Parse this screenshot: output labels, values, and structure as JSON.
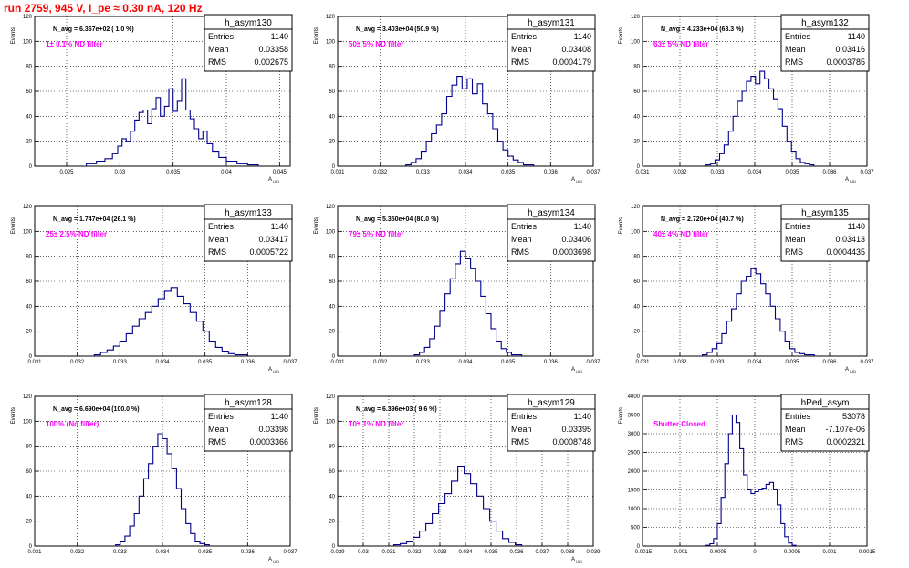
{
  "header": {
    "run_title": "run 2759,   945 V, I_pe ≈ 0.30 nA, 120 Hz"
  },
  "colors": {
    "hist_line": "#00008b",
    "note_text": "#ff00ff",
    "title_text": "#ff0000",
    "grid": "#000000"
  },
  "stat_labels": {
    "entries": "Entries",
    "mean": "Mean",
    "rms": "RMS"
  },
  "chart_data": [
    {
      "type": "histogram",
      "name": "h_asym130",
      "navg": "N_avg = 6.367e+02 ( 1.0 %)",
      "note": "1± 0.1% ND filter",
      "entries": "1140",
      "mean": "0.03358",
      "rms": "0.002675",
      "ylabel": "Events",
      "xlabel": "A_uid",
      "xlim": [
        0.022,
        0.046
      ],
      "ylim": [
        0,
        120
      ],
      "xticks": [
        0.025,
        0.03,
        0.035,
        0.04,
        0.045
      ],
      "xtick_labels": [
        "0.025",
        "0.03",
        "0.035",
        "0.04",
        "0.045"
      ],
      "yticks": [
        0,
        20,
        40,
        60,
        80,
        100,
        120
      ],
      "ytick_labels": [
        "0",
        "20",
        "40",
        "60",
        "80",
        "100",
        "120"
      ],
      "grid": true,
      "bin_edges": [
        0.02685,
        0.0278,
        0.0286,
        0.0293,
        0.0298,
        0.0302,
        0.0306,
        0.031,
        0.0314,
        0.0318,
        0.0322,
        0.0326,
        0.033,
        0.0334,
        0.0338,
        0.0342,
        0.0346,
        0.035,
        0.0354,
        0.0358,
        0.0362,
        0.0366,
        0.037,
        0.0374,
        0.0378,
        0.0382,
        0.0387,
        0.0393,
        0.04,
        0.041,
        0.042,
        0.043
      ],
      "counts": [
        2,
        4,
        6,
        10,
        16,
        22,
        20,
        28,
        37,
        43,
        45,
        34,
        46,
        55,
        40,
        48,
        62,
        44,
        52,
        70,
        45,
        38,
        30,
        22,
        28,
        18,
        12,
        7,
        4,
        2,
        1
      ]
    },
    {
      "type": "histogram",
      "name": "h_asym131",
      "navg": "N_avg = 3.403e+04 (50.9 %)",
      "note": "50± 5% ND filter",
      "entries": "1140",
      "mean": "0.03408",
      "rms": "0.0004179",
      "ylabel": "Events",
      "xlabel": "A_uid",
      "xlim": [
        0.031,
        0.037
      ],
      "ylim": [
        0,
        120
      ],
      "xticks": [
        0.031,
        0.032,
        0.033,
        0.034,
        0.035,
        0.036,
        0.037
      ],
      "xtick_labels": [
        "0.031",
        "0.032",
        "0.033",
        "0.034",
        "0.035",
        "0.036",
        "0.037"
      ],
      "yticks": [
        0,
        20,
        40,
        60,
        80,
        100,
        120
      ],
      "ytick_labels": [
        "0",
        "20",
        "40",
        "60",
        "80",
        "100",
        "120"
      ],
      "grid": true,
      "bin_edges": [
        0.0326,
        0.03272,
        0.03284,
        0.03296,
        0.03308,
        0.0332,
        0.03332,
        0.03344,
        0.03356,
        0.03368,
        0.0338,
        0.03392,
        0.03404,
        0.03416,
        0.03428,
        0.0344,
        0.03452,
        0.03464,
        0.03476,
        0.03488,
        0.035,
        0.03512,
        0.03524,
        0.03536,
        0.03548,
        0.0356
      ],
      "counts": [
        1,
        3,
        6,
        12,
        20,
        26,
        33,
        42,
        56,
        65,
        72,
        62,
        70,
        58,
        66,
        50,
        42,
        30,
        20,
        13,
        8,
        5,
        3,
        1,
        1
      ]
    },
    {
      "type": "histogram",
      "name": "h_asym132",
      "navg": "N_avg = 4.233e+04 (63.3 %)",
      "note": "63± 5% ND filter",
      "entries": "1140",
      "mean": "0.03416",
      "rms": "0.0003785",
      "ylabel": "Events",
      "xlabel": "A_uid",
      "xlim": [
        0.031,
        0.037
      ],
      "ylim": [
        0,
        120
      ],
      "xticks": [
        0.031,
        0.032,
        0.033,
        0.034,
        0.035,
        0.036,
        0.037
      ],
      "xtick_labels": [
        "0.031",
        "0.032",
        "0.033",
        "0.034",
        "0.035",
        "0.036",
        "0.037"
      ],
      "yticks": [
        0,
        20,
        40,
        60,
        80,
        100,
        120
      ],
      "ytick_labels": [
        "0",
        "20",
        "40",
        "60",
        "80",
        "100",
        "120"
      ],
      "grid": true,
      "bin_edges": [
        0.0327,
        0.03282,
        0.03294,
        0.03306,
        0.03318,
        0.0333,
        0.03342,
        0.03354,
        0.03366,
        0.03378,
        0.0339,
        0.03402,
        0.03414,
        0.03426,
        0.03438,
        0.0345,
        0.03462,
        0.03474,
        0.03486,
        0.03498,
        0.0351,
        0.03522,
        0.03534,
        0.03546,
        0.03558
      ],
      "counts": [
        1,
        2,
        5,
        10,
        17,
        28,
        40,
        52,
        60,
        68,
        72,
        66,
        76,
        70,
        62,
        54,
        46,
        32,
        20,
        12,
        6,
        3,
        2,
        1
      ]
    },
    {
      "type": "histogram",
      "name": "h_asym133",
      "navg": "N_avg = 1.747e+04 (26.1 %)",
      "note": "25± 2.5% ND filter",
      "entries": "1140",
      "mean": "0.03417",
      "rms": "0.0005722",
      "ylabel": "Events",
      "xlabel": "A_uid",
      "xlim": [
        0.031,
        0.037
      ],
      "ylim": [
        0,
        120
      ],
      "xticks": [
        0.031,
        0.032,
        0.033,
        0.034,
        0.035,
        0.036,
        0.037
      ],
      "xtick_labels": [
        "0.031",
        "0.032",
        "0.033",
        "0.034",
        "0.035",
        "0.036",
        "0.037"
      ],
      "yticks": [
        0,
        20,
        40,
        60,
        80,
        100,
        120
      ],
      "ytick_labels": [
        "0",
        "20",
        "40",
        "60",
        "80",
        "100",
        "120"
      ],
      "grid": true,
      "bin_edges": [
        0.0324,
        0.03255,
        0.0327,
        0.03285,
        0.033,
        0.03315,
        0.0333,
        0.03345,
        0.0336,
        0.03375,
        0.0339,
        0.03405,
        0.0342,
        0.03435,
        0.0345,
        0.03465,
        0.0348,
        0.03495,
        0.0351,
        0.03525,
        0.0354,
        0.03555,
        0.0357,
        0.03585,
        0.036
      ],
      "counts": [
        1,
        3,
        5,
        8,
        12,
        18,
        24,
        30,
        35,
        40,
        46,
        52,
        55,
        48,
        42,
        35,
        28,
        20,
        12,
        7,
        4,
        2,
        1,
        1
      ]
    },
    {
      "type": "histogram",
      "name": "h_asym134",
      "navg": "N_avg = 5.350e+04 (80.0 %)",
      "note": "79± 5% ND filter",
      "entries": "1140",
      "mean": "0.03406",
      "rms": "0.0003698",
      "ylabel": "Events",
      "xlabel": "A_uid",
      "xlim": [
        0.031,
        0.037
      ],
      "ylim": [
        0,
        120
      ],
      "xticks": [
        0.031,
        0.032,
        0.033,
        0.034,
        0.035,
        0.036,
        0.037
      ],
      "xtick_labels": [
        "0.031",
        "0.032",
        "0.033",
        "0.034",
        "0.035",
        "0.036",
        "0.037"
      ],
      "yticks": [
        0,
        20,
        40,
        60,
        80,
        100,
        120
      ],
      "ytick_labels": [
        "0",
        "20",
        "40",
        "60",
        "80",
        "100",
        "120"
      ],
      "grid": true,
      "bin_edges": [
        0.0328,
        0.03292,
        0.03304,
        0.03316,
        0.03328,
        0.0334,
        0.03352,
        0.03364,
        0.03376,
        0.03388,
        0.034,
        0.03412,
        0.03424,
        0.03436,
        0.03448,
        0.0346,
        0.03472,
        0.03484,
        0.03496,
        0.03508,
        0.0352,
        0.03532
      ],
      "counts": [
        1,
        3,
        7,
        14,
        24,
        36,
        50,
        62,
        74,
        84,
        78,
        70,
        60,
        48,
        34,
        22,
        12,
        6,
        3,
        1,
        1
      ]
    },
    {
      "type": "histogram",
      "name": "h_asym135",
      "navg": "N_avg = 2.720e+04 (40.7 %)",
      "note": "40± 4% ND filter",
      "entries": "1140",
      "mean": "0.03413",
      "rms": "0.0004435",
      "ylabel": "Events",
      "xlabel": "A_uid",
      "xlim": [
        0.031,
        0.037
      ],
      "ylim": [
        0,
        120
      ],
      "xticks": [
        0.031,
        0.032,
        0.033,
        0.034,
        0.035,
        0.036,
        0.037
      ],
      "xtick_labels": [
        "0.031",
        "0.032",
        "0.033",
        "0.034",
        "0.035",
        "0.036",
        "0.037"
      ],
      "yticks": [
        0,
        20,
        40,
        60,
        80,
        100,
        120
      ],
      "ytick_labels": [
        "0",
        "20",
        "40",
        "60",
        "80",
        "100",
        "120"
      ],
      "grid": true,
      "bin_edges": [
        0.0326,
        0.03273,
        0.03286,
        0.03299,
        0.03312,
        0.03325,
        0.03338,
        0.03351,
        0.03364,
        0.03377,
        0.0339,
        0.03403,
        0.03416,
        0.03429,
        0.03442,
        0.03455,
        0.03468,
        0.03481,
        0.03494,
        0.03507,
        0.0352,
        0.03533,
        0.03546,
        0.03559
      ],
      "counts": [
        1,
        3,
        6,
        10,
        18,
        28,
        38,
        50,
        60,
        64,
        70,
        66,
        58,
        50,
        40,
        30,
        20,
        12,
        6,
        3,
        2,
        1,
        1
      ]
    },
    {
      "type": "histogram",
      "name": "h_asym128",
      "navg": "N_avg = 6.690e+04 (100.0 %)",
      "note": "100% (No filter)",
      "entries": "1140",
      "mean": "0.03398",
      "rms": "0.0003366",
      "ylabel": "Events",
      "xlabel": "A_uid",
      "xlim": [
        0.031,
        0.037
      ],
      "ylim": [
        0,
        120
      ],
      "xticks": [
        0.031,
        0.032,
        0.033,
        0.034,
        0.035,
        0.036,
        0.037
      ],
      "xtick_labels": [
        "0.031",
        "0.032",
        "0.033",
        "0.034",
        "0.035",
        "0.036",
        "0.037"
      ],
      "yticks": [
        0,
        20,
        40,
        60,
        80,
        100,
        120
      ],
      "ytick_labels": [
        "0",
        "20",
        "40",
        "60",
        "80",
        "100",
        "120"
      ],
      "grid": true,
      "bin_edges": [
        0.0329,
        0.03301,
        0.03312,
        0.03323,
        0.03334,
        0.03345,
        0.03356,
        0.03367,
        0.03378,
        0.03389,
        0.034,
        0.03411,
        0.03422,
        0.03433,
        0.03444,
        0.03455,
        0.03466,
        0.03477,
        0.03488,
        0.03499,
        0.0351
      ],
      "counts": [
        1,
        4,
        8,
        16,
        26,
        40,
        54,
        66,
        80,
        90,
        86,
        74,
        62,
        46,
        30,
        18,
        10,
        4,
        2,
        1
      ]
    },
    {
      "type": "histogram",
      "name": "h_asym129",
      "navg": "N_avg = 6.396e+03 ( 9.6 %)",
      "note": "10± 1% ND filter",
      "entries": "1140",
      "mean": "0.03395",
      "rms": "0.0008748",
      "ylabel": "Events",
      "xlabel": "A_uid",
      "xlim": [
        0.029,
        0.039
      ],
      "ylim": [
        0,
        120
      ],
      "xticks": [
        0.029,
        0.03,
        0.031,
        0.032,
        0.033,
        0.034,
        0.035,
        0.036,
        0.037,
        0.038,
        0.039
      ],
      "xtick_labels": [
        "0.029",
        "0.03",
        "0.031",
        "0.032",
        "0.033",
        "0.034",
        "0.035",
        "0.036",
        "0.037",
        "0.038",
        "0.039"
      ],
      "yticks": [
        0,
        20,
        40,
        60,
        80,
        100,
        120
      ],
      "ytick_labels": [
        "0",
        "20",
        "40",
        "60",
        "80",
        "100",
        "120"
      ],
      "grid": true,
      "bin_edges": [
        0.0312,
        0.03145,
        0.0317,
        0.03195,
        0.0322,
        0.03245,
        0.0327,
        0.03295,
        0.0332,
        0.03345,
        0.0337,
        0.03395,
        0.0342,
        0.03445,
        0.0347,
        0.03495,
        0.0352,
        0.03545,
        0.0357,
        0.03595,
        0.0362
      ],
      "counts": [
        1,
        2,
        4,
        7,
        12,
        18,
        26,
        34,
        42,
        52,
        64,
        58,
        50,
        40,
        30,
        20,
        12,
        6,
        3,
        1
      ]
    },
    {
      "type": "histogram",
      "name": "hPed_asym",
      "note": "Shutter Closed",
      "entries": "53078",
      "mean": "-7.107e-06",
      "rms": "0.0002321",
      "ylabel": "Events",
      "xlabel": "",
      "xlim": [
        -0.0015,
        0.0015
      ],
      "ylim": [
        0,
        4000
      ],
      "xticks": [
        -0.0015,
        -0.001,
        -0.0005,
        0,
        0.0005,
        0.001,
        0.0015
      ],
      "xtick_labels": [
        "-0.0015",
        "-0.001",
        "-0.0005",
        "0",
        "0.0005",
        "0.001",
        "0.0015"
      ],
      "yticks": [
        0,
        500,
        1000,
        1500,
        2000,
        2500,
        3000,
        3500,
        4000
      ],
      "ytick_labels": [
        "0",
        "500",
        "1000",
        "1500",
        "2000",
        "2500",
        "3000",
        "3500",
        "4000"
      ],
      "grid": true,
      "bin_edges": [
        -0.00065,
        -0.0006,
        -0.00055,
        -0.0005,
        -0.00045,
        -0.0004,
        -0.00035,
        -0.0003,
        -0.00025,
        -0.0002,
        -0.00015,
        -0.0001,
        -5e-05,
        0,
        5e-05,
        0.0001,
        0.00015,
        0.0002,
        0.00025,
        0.0003,
        0.00035,
        0.0004,
        0.00045,
        0.0005,
        0.00055
      ],
      "counts": [
        20,
        60,
        200,
        600,
        1300,
        2200,
        3000,
        3500,
        3300,
        2600,
        1900,
        1500,
        1400,
        1450,
        1500,
        1550,
        1650,
        1700,
        1500,
        1100,
        600,
        250,
        80,
        20
      ]
    }
  ]
}
